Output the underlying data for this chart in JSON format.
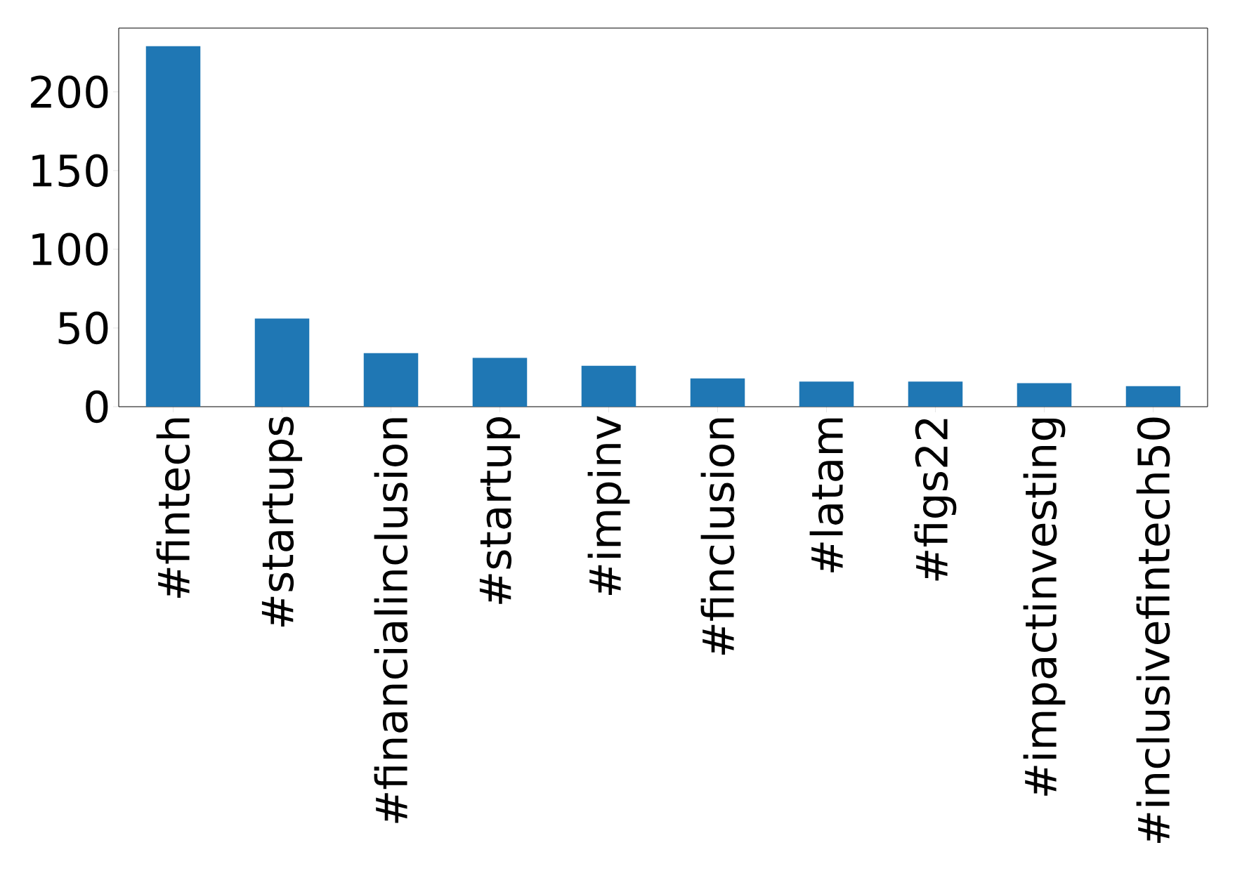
{
  "chart_data": {
    "type": "bar",
    "categories": [
      "#fintech",
      "#startups",
      "#financialinclusion",
      "#startup",
      "#impinv",
      "#finclusion",
      "#latam",
      "#figs22",
      "#impactinvesting",
      "#inclusivefintech50"
    ],
    "values": [
      229,
      56,
      34,
      31,
      26,
      18,
      16,
      16,
      15,
      13
    ],
    "color": "#1f77b4",
    "ylim": [
      0,
      240.5
    ],
    "yticks": [
      0,
      50,
      100,
      150,
      200
    ],
    "grid": false
  }
}
